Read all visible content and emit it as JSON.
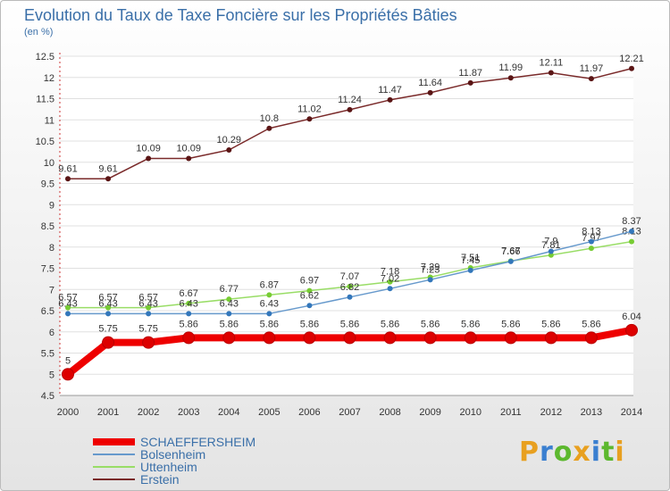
{
  "chart_data": {
    "type": "line",
    "title": "Evolution du Taux de Taxe Foncière sur les Propriétés Bâties",
    "subtitle": "(en %)",
    "xlabel": "",
    "ylabel": "",
    "ylim": [
      4.5,
      12.5
    ],
    "y_ticks": [
      "4.5",
      "5",
      "5.5",
      "6",
      "6.5",
      "7",
      "7.5",
      "8",
      "8.5",
      "9",
      "9.5",
      "10",
      "10.5",
      "11",
      "11.5",
      "12",
      "12.5"
    ],
    "categories": [
      "2000",
      "2001",
      "2002",
      "2003",
      "2004",
      "2005",
      "2006",
      "2007",
      "2008",
      "2009",
      "2010",
      "2011",
      "2012",
      "2013",
      "2014"
    ],
    "legend_position": "bottom-left",
    "series": [
      {
        "name": "Erstein",
        "color": "#7a2a2a",
        "marker_color": "#5a1515",
        "values": [
          9.61,
          9.61,
          10.09,
          10.09,
          10.29,
          10.8,
          11.02,
          11.24,
          11.47,
          11.64,
          11.87,
          11.99,
          12.11,
          11.97,
          12.21
        ],
        "labels": [
          "9.61",
          "9.61",
          "10.09",
          "10.09",
          "10.29",
          "10.8",
          "11.02",
          "11.24",
          "11.47",
          "11.64",
          "11.87",
          "11.99",
          "12.11",
          "11.97",
          "12.21"
        ]
      },
      {
        "name": "Uttenheim",
        "color": "#99dd66",
        "marker_color": "#77cc33",
        "values": [
          6.57,
          6.57,
          6.57,
          6.67,
          6.77,
          6.87,
          6.97,
          7.07,
          7.18,
          7.29,
          7.51,
          7.67,
          7.81,
          7.97,
          8.13
        ],
        "labels": [
          "6.57",
          "6.57",
          "6.57",
          "6.67",
          "6.77",
          "6.87",
          "6.97",
          "7.07",
          "7.18",
          "7.29",
          "7.51",
          "7.67",
          "7.81",
          "7.97",
          "8.13"
        ]
      },
      {
        "name": "Bolsenheim",
        "color": "#6699cc",
        "marker_color": "#3377bb",
        "values": [
          6.43,
          6.43,
          6.43,
          6.43,
          6.43,
          6.43,
          6.62,
          6.82,
          7.02,
          7.23,
          7.45,
          7.66,
          7.9,
          8.13,
          8.37
        ],
        "labels": [
          "6.43",
          "6.43",
          "6.43",
          "6.43",
          "6.43",
          "6.43",
          "6.62",
          "6.82",
          "7.02",
          "7.23",
          "7.45",
          "7.66",
          "7.9",
          "8.13",
          "8.37"
        ]
      },
      {
        "name": "SCHAEFFERSHEIM",
        "color": "#ee0000",
        "marker_color": "#dd0000",
        "values": [
          5,
          5.75,
          5.75,
          5.86,
          5.86,
          5.86,
          5.86,
          5.86,
          5.86,
          5.86,
          5.86,
          5.86,
          5.86,
          5.86,
          6.04
        ],
        "labels": [
          "5",
          "5.75",
          "5.75",
          "5.86",
          "5.86",
          "5.86",
          "5.86",
          "5.86",
          "5.86",
          "5.86",
          "5.86",
          "5.86",
          "5.86",
          "5.86",
          "6.04"
        ]
      }
    ],
    "legend": [
      "SCHAEFFERSHEIM",
      "Bolsenheim",
      "Uttenheim",
      "Erstein"
    ]
  },
  "logo": {
    "letters": [
      "P",
      "r",
      "o",
      "x",
      "i",
      "t",
      "i"
    ],
    "colors": [
      "#e8a020",
      "#3a7fd0",
      "#5cb82e",
      "#e8a020",
      "#3a7fd0",
      "#5cb82e",
      "#e8a020"
    ]
  }
}
